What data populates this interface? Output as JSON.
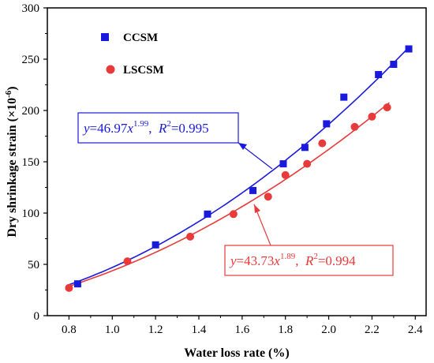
{
  "chart_data": {
    "type": "scatter",
    "xlabel": "Water loss rate (%)",
    "ylabel": "Dry shrinkage strain (×10",
    "ylabel_sup": "-6",
    "ylabel_close": ")",
    "xlim": [
      0.7,
      2.45
    ],
    "ylim": [
      0,
      300
    ],
    "xticks": [
      0.8,
      1.0,
      1.2,
      1.4,
      1.6,
      1.8,
      2.0,
      2.2,
      2.4
    ],
    "yticks": [
      0,
      50,
      100,
      150,
      200,
      250,
      300
    ],
    "legend_position": "top-left",
    "series": [
      {
        "name": "CCSM",
        "marker": "square",
        "color": "#1a1adc",
        "x": [
          0.84,
          1.2,
          1.44,
          1.65,
          1.79,
          1.89,
          1.99,
          2.07,
          2.23,
          2.3,
          2.37
        ],
        "y": [
          31,
          69,
          99,
          122,
          148,
          164,
          187,
          213,
          235,
          245,
          260
        ],
        "fit": {
          "a": 46.97,
          "b": 1.99,
          "x_range": [
            0.8,
            2.37
          ]
        }
      },
      {
        "name": "LSCSM",
        "marker": "circle",
        "color": "#e83a3a",
        "x": [
          0.8,
          1.07,
          1.36,
          1.56,
          1.72,
          1.8,
          1.9,
          1.97,
          2.12,
          2.2,
          2.27
        ],
        "y": [
          27,
          53,
          77,
          99,
          116,
          137,
          148,
          168,
          184,
          194,
          203
        ],
        "fit": {
          "a": 43.73,
          "b": 1.89,
          "x_range": [
            0.8,
            2.28
          ]
        }
      }
    ],
    "annotations": [
      {
        "series": "CCSM",
        "y_eq": "y",
        "coef": "=46.97",
        "x_var": "x",
        "exponent": "1.99",
        "sep": ",  ",
        "r_var": "R",
        "r_exp": "2",
        "r_val": "=0.995"
      },
      {
        "series": "LSCSM",
        "y_eq": "y",
        "coef": "=43.73",
        "x_var": "x",
        "exponent": "1.89",
        "sep": ",  ",
        "r_var": "R",
        "r_exp": "2",
        "r_val": "=0.994"
      }
    ]
  }
}
